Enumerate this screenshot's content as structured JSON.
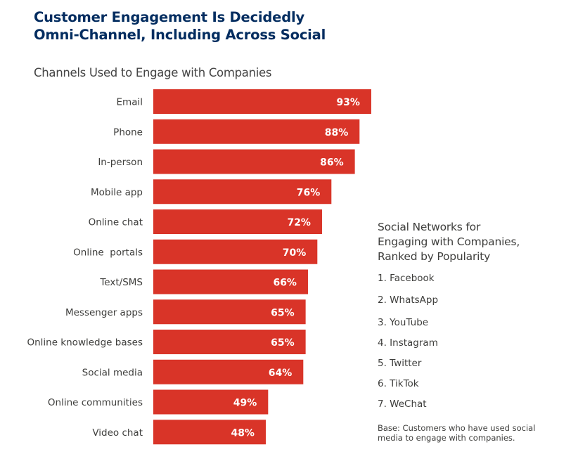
{
  "header": {
    "title_line1": "Customer Engagement Is Decidedly",
    "title_line2": "Omni-Channel, Including Across Social"
  },
  "colors": {
    "bar": "#d93428",
    "title": "#032d60",
    "text": "#3e3e3c"
  },
  "chart_data": {
    "type": "bar",
    "orientation": "horizontal",
    "title": "Channels Used to Engage with Companies",
    "xlabel": "",
    "ylabel": "",
    "xlim": [
      0,
      100
    ],
    "grid": false,
    "categories": [
      "Email",
      "Phone",
      "In-person",
      "Mobile app",
      "Online chat",
      "Online  portals",
      "Text/SMS",
      "Messenger apps",
      "Online knowledge bases",
      "Social media",
      "Online communities",
      "Video chat"
    ],
    "values": [
      93,
      88,
      86,
      76,
      72,
      70,
      66,
      65,
      65,
      64,
      49,
      48
    ],
    "value_labels": [
      "93%",
      "88%",
      "86%",
      "76%",
      "72%",
      "70%",
      "66%",
      "65%",
      "65%",
      "64%",
      "49%",
      "48%"
    ],
    "unit": "%"
  },
  "side_panel": {
    "title_line1": "Social Networks for",
    "title_line2": "Engaging with Companies,",
    "title_line3": "Ranked by Popularity",
    "items": [
      "1. Facebook",
      "2. WhatsApp",
      "3. YouTube",
      "4. Instagram",
      "5. Twitter",
      "6. TikTok",
      "7. WeChat"
    ],
    "base_note": "Base: Customers who have used social media to engage with companies."
  }
}
